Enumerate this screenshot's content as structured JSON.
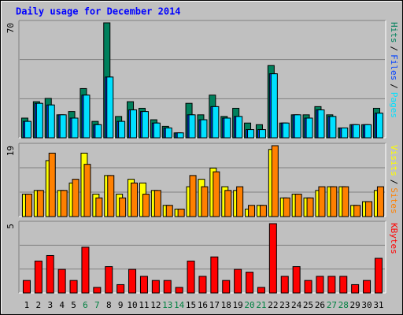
{
  "title": "Daily usage for December 2014",
  "separator": "/",
  "chart_data": [
    {
      "type": "bar",
      "ylim": [
        0,
        70
      ],
      "yticks": [
        70
      ],
      "series": [
        {
          "name": "Hits",
          "color": "#00805c",
          "values": [
            12,
            22,
            24,
            14,
            16,
            30,
            10,
            70,
            13,
            22,
            18,
            11,
            7,
            3,
            21,
            14,
            26,
            13,
            18,
            9,
            8,
            44,
            9,
            14,
            14,
            19,
            14,
            6,
            8,
            8,
            18
          ]
        },
        {
          "name": "Files",
          "color": "#0040ff",
          "values": [
            10,
            21,
            20,
            14,
            12,
            26,
            8,
            37,
            10,
            17,
            16,
            9,
            6,
            3,
            14,
            11,
            19,
            12,
            13,
            5,
            5,
            39,
            9,
            14,
            12,
            17,
            13,
            6,
            8,
            8,
            15
          ]
        },
        {
          "name": "Pages",
          "color": "#00e0ff",
          "values": [
            10,
            21,
            20,
            14,
            12,
            26,
            8,
            37,
            10,
            17,
            16,
            9,
            6,
            3,
            14,
            11,
            19,
            12,
            13,
            5,
            5,
            39,
            9,
            14,
            12,
            17,
            13,
            6,
            8,
            8,
            15
          ]
        }
      ]
    },
    {
      "type": "bar",
      "ylim": [
        0,
        19
      ],
      "yticks": [
        19
      ],
      "series": [
        {
          "name": "Visits",
          "color": "#ffff00",
          "values": [
            6,
            7,
            15,
            7,
            9,
            17,
            6,
            11,
            6,
            10,
            9,
            7,
            3,
            2,
            8,
            10,
            13,
            8,
            7,
            2,
            3,
            18,
            5,
            6,
            5,
            7,
            8,
            8,
            3,
            4,
            7
          ]
        },
        {
          "name": "Sites",
          "color": "#ff8000",
          "values": [
            6,
            7,
            17,
            7,
            10,
            14,
            5,
            11,
            5,
            9,
            6,
            7,
            3,
            2,
            11,
            8,
            12,
            7,
            8,
            3,
            3,
            19,
            5,
            6,
            5,
            8,
            8,
            8,
            3,
            4,
            8
          ]
        }
      ]
    },
    {
      "type": "bar",
      "ylim": [
        0,
        5
      ],
      "yticks": [
        5
      ],
      "categories": [
        "1",
        "2",
        "3",
        "4",
        "5",
        "6",
        "7",
        "8",
        "9",
        "10",
        "11",
        "12",
        "13",
        "14",
        "15",
        "16",
        "17",
        "18",
        "19",
        "20",
        "21",
        "22",
        "23",
        "24",
        "25",
        "26",
        "27",
        "28",
        "29",
        "30",
        "31"
      ],
      "category_colors": [
        "#000000",
        "#000000",
        "#000000",
        "#000000",
        "#000000",
        "#008040",
        "#008040",
        "#000000",
        "#000000",
        "#000000",
        "#000000",
        "#000000",
        "#008040",
        "#008040",
        "#000000",
        "#000000",
        "#000000",
        "#000000",
        "#000000",
        "#008040",
        "#008040",
        "#000000",
        "#000000",
        "#000000",
        "#000000",
        "#000000",
        "#008040",
        "#008040",
        "#000000",
        "#000000",
        "#000000"
      ],
      "series": [
        {
          "name": "KBytes",
          "color": "#ff0000",
          "values": [
            0.9,
            2.3,
            2.7,
            1.7,
            0.9,
            3.3,
            0.4,
            1.9,
            0.6,
            1.7,
            1.2,
            0.9,
            0.9,
            0.4,
            2.3,
            1.2,
            2.6,
            0.9,
            1.7,
            1.5,
            0.4,
            5.0,
            1.2,
            1.9,
            0.9,
            1.2,
            1.2,
            1.2,
            0.6,
            0.9,
            2.5
          ]
        }
      ]
    }
  ]
}
